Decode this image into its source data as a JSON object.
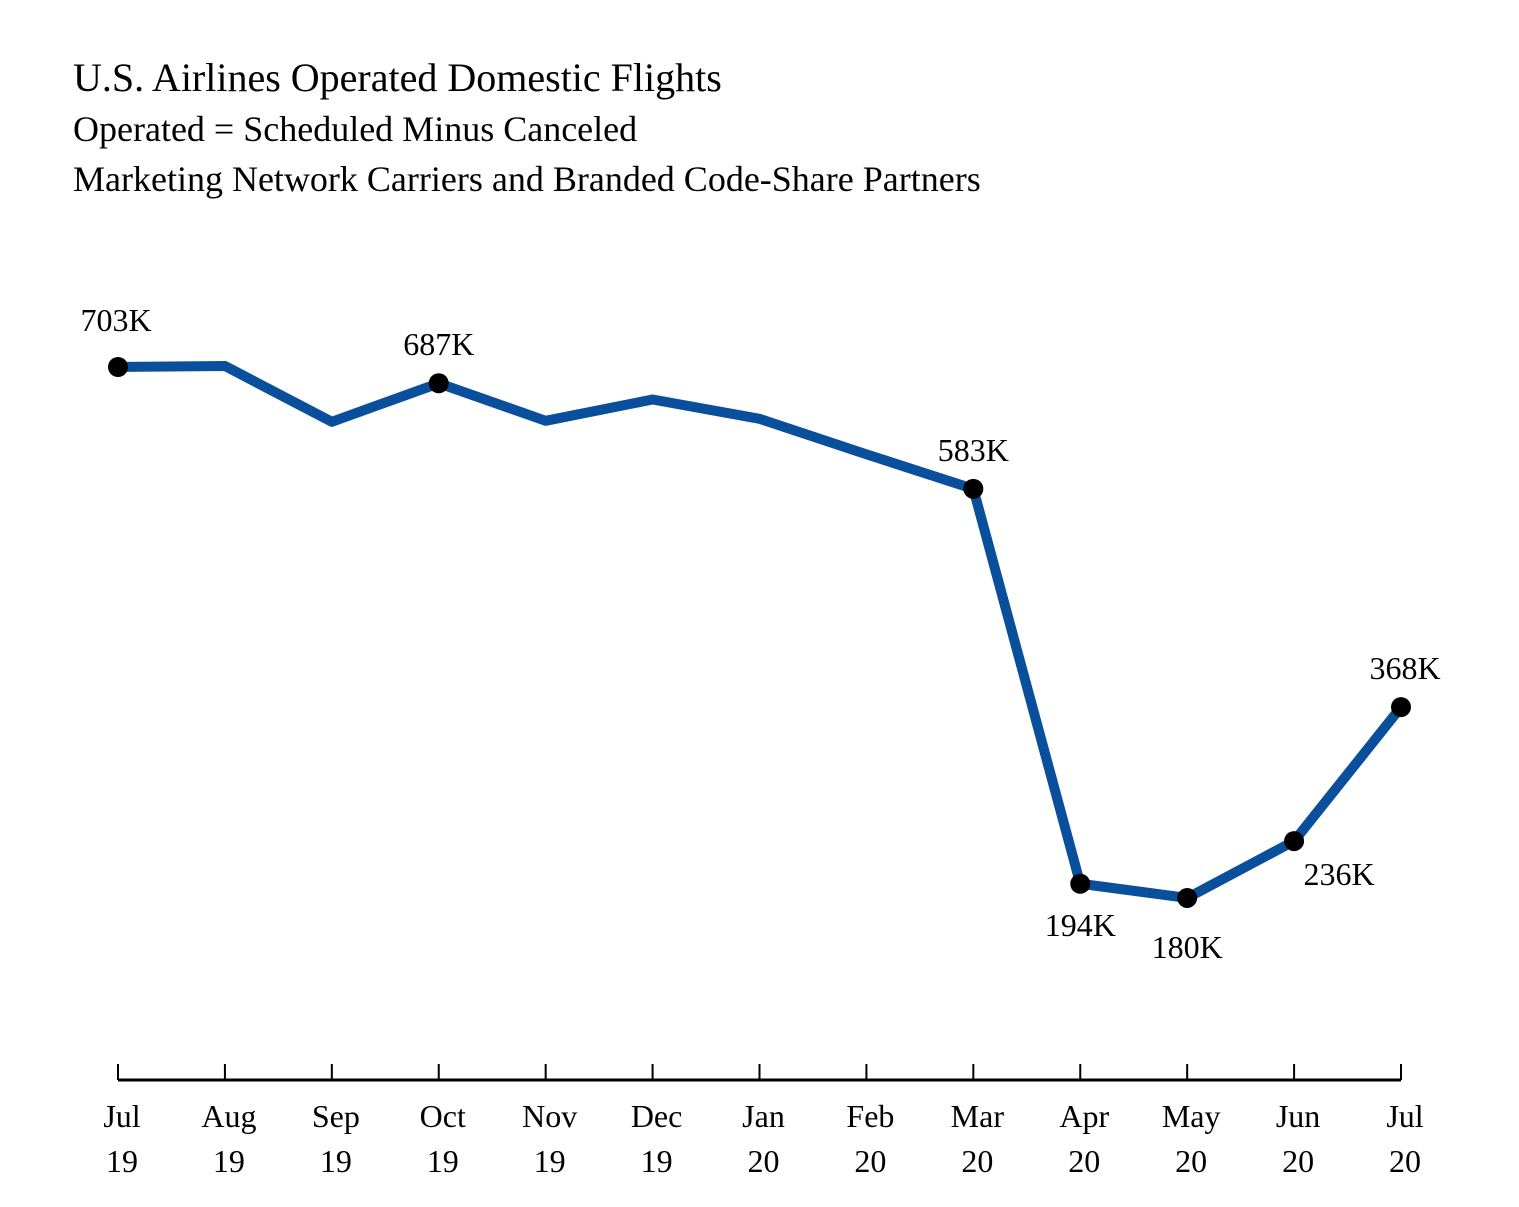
{
  "chart_data": {
    "type": "line",
    "title": "U.S. Airlines Operated Domestic Flights",
    "subtitle_lines": [
      "Operated = Scheduled Minus Canceled",
      "Marketing Network Carriers and Branded Code-Share Partners"
    ],
    "xlabel": "",
    "ylabel": "",
    "grid": false,
    "categories": [
      [
        "Jul",
        "19"
      ],
      [
        "Aug",
        "19"
      ],
      [
        "Sep",
        "19"
      ],
      [
        "Oct",
        "19"
      ],
      [
        "Nov",
        "19"
      ],
      [
        "Dec",
        "19"
      ],
      [
        "Jan",
        "20"
      ],
      [
        "Feb",
        "20"
      ],
      [
        "Mar",
        "20"
      ],
      [
        "Apr",
        "20"
      ],
      [
        "May",
        "20"
      ],
      [
        "Jun",
        "20"
      ],
      [
        "Jul",
        "20"
      ]
    ],
    "values": [
      703,
      704,
      649,
      687,
      650,
      671,
      652,
      617,
      583,
      194,
      180,
      236,
      368
    ],
    "units": "thousands of flights",
    "data_labels": [
      "703K",
      null,
      null,
      "687K",
      null,
      null,
      null,
      null,
      "583K",
      "194K",
      "180K",
      "236K",
      "368K"
    ],
    "marked_points": [
      0,
      3,
      8,
      9,
      10,
      11,
      12
    ],
    "line_color": "#0a4f9c",
    "marker_color": "#000000"
  }
}
